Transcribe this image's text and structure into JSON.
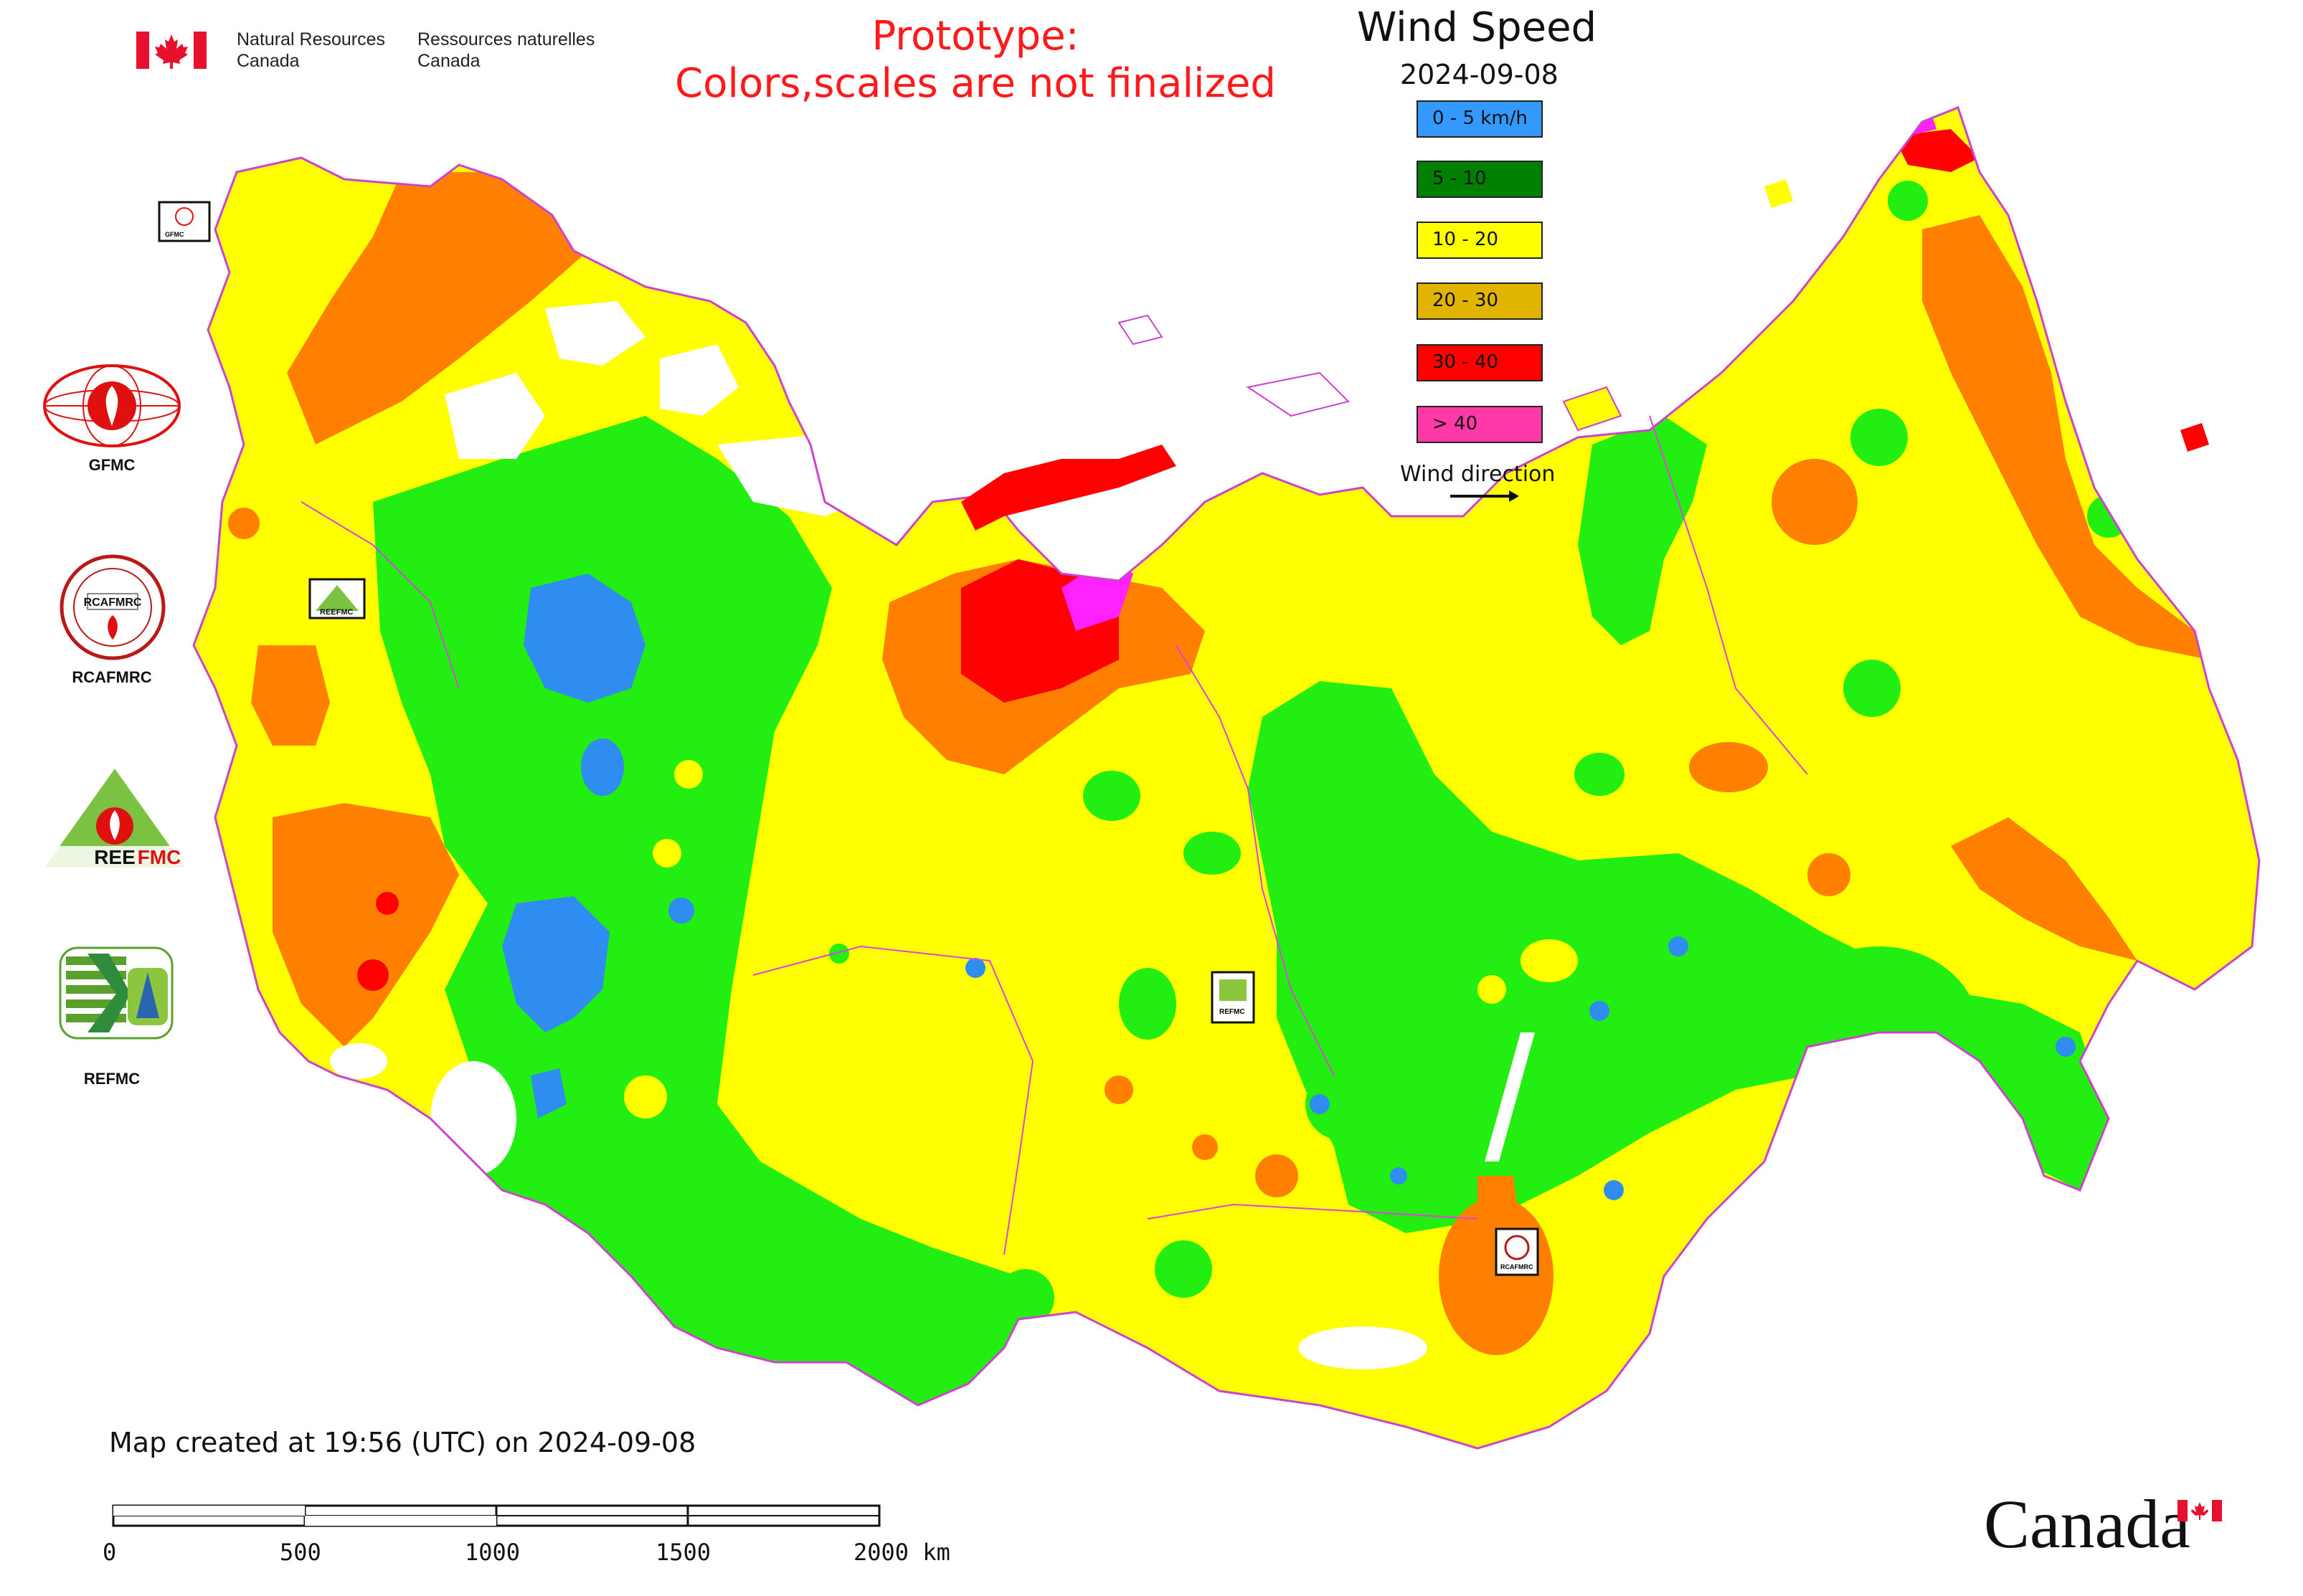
{
  "header": {
    "gov_en_line1": "Natural Resources",
    "gov_en_line2": "Canada",
    "gov_fr_line1": "Ressources naturelles",
    "gov_fr_line2": "Canada",
    "prototype_line1": "Prototype:",
    "prototype_line2": "Colors,scales are not finalized"
  },
  "legend": {
    "title": "Wind Speed",
    "date": "2024-09-08",
    "classes": [
      {
        "label": "0 - 5 km/h",
        "color": "#3399ff"
      },
      {
        "label": "5 - 10",
        "color": "#008000"
      },
      {
        "label": "10 - 20",
        "color": "#ffff00"
      },
      {
        "label": "20 - 30",
        "color": "#e0b400"
      },
      {
        "label": "30 - 40",
        "color": "#ff0000"
      },
      {
        "label": "> 40",
        "color": "#ff3aa8"
      }
    ],
    "wind_direction_label": "Wind direction"
  },
  "map_colors": {
    "lt5": "#2f8cf0",
    "c5_10": "#22ee11",
    "c10_20": "#ffff00",
    "c20_30": "#ff8000",
    "c30_40": "#ff0000",
    "gt40": "#ff22ff",
    "border": "#dd44dd",
    "water": "#ffffff"
  },
  "side_logos": [
    {
      "name": "GFMC",
      "icon": "gfmc-logo-icon"
    },
    {
      "name": "RCAFMRC",
      "icon": "rcafmrc-logo-icon"
    },
    {
      "name": "REEFMC",
      "icon": "reefmc-logo-icon"
    },
    {
      "name": "REFMC",
      "icon": "refmc-logo-icon"
    }
  ],
  "map_logo_labels": {
    "gfmc": "GFMC",
    "reefmc": "REEFMC",
    "refmc": "REFMC",
    "rcafmrc": "RCAFMRC"
  },
  "footer": {
    "created": "Map created at 19:56 (UTC) on 2024-09-08",
    "scale_ticks": [
      "0",
      "500",
      "1000",
      "1500",
      "2000 km"
    ]
  },
  "wordmark": "Canada"
}
